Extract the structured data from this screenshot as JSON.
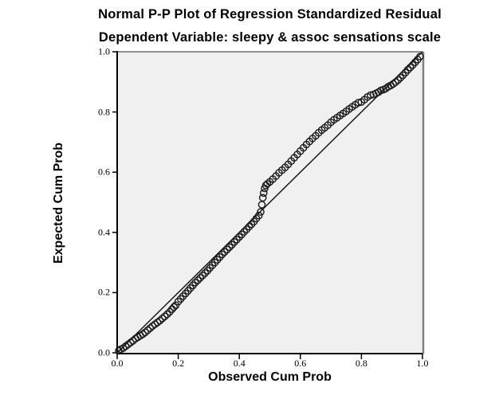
{
  "figure": {
    "title": "Normal P-P Plot of Regression Standardized Residual",
    "subtitle": "Dependent Variable: sleepy & assoc sensations scale"
  },
  "axes": {
    "x_label": "Observed Cum Prob",
    "y_label": "Expected Cum Prob",
    "x_ticks": [
      "0.0",
      "0.2",
      "0.4",
      "0.6",
      "0.8",
      "1.0"
    ],
    "y_ticks": [
      "0.0",
      "0.2",
      "0.4",
      "0.6",
      "0.8",
      "1.0"
    ]
  },
  "colors": {
    "background": "#ffffff",
    "plot_background": "#f0f0f0",
    "axis_line": "#000000",
    "top_border": "#2a2a2a",
    "right_border": "#808080",
    "reference_line": "#1a1a1a",
    "point_stroke": "#1a1a1a"
  },
  "chart_data": {
    "type": "scatter",
    "title": "Normal P-P Plot of Regression Standardized Residual",
    "subtitle": "Dependent Variable: sleepy & assoc sensations scale",
    "xlabel": "Observed Cum Prob",
    "ylabel": "Expected Cum Prob",
    "xlim": [
      0,
      1
    ],
    "ylim": [
      0,
      1
    ],
    "grid": false,
    "legend": "none",
    "marker": "open-circle",
    "reference_line": {
      "from": [
        0,
        0
      ],
      "to": [
        1,
        1
      ]
    },
    "points": [
      [
        0.005,
        0.007
      ],
      [
        0.012,
        0.012
      ],
      [
        0.02,
        0.016
      ],
      [
        0.028,
        0.022
      ],
      [
        0.036,
        0.028
      ],
      [
        0.044,
        0.034
      ],
      [
        0.052,
        0.04
      ],
      [
        0.06,
        0.047
      ],
      [
        0.068,
        0.052
      ],
      [
        0.076,
        0.057
      ],
      [
        0.084,
        0.062
      ],
      [
        0.092,
        0.068
      ],
      [
        0.1,
        0.075
      ],
      [
        0.108,
        0.082
      ],
      [
        0.116,
        0.089
      ],
      [
        0.124,
        0.095
      ],
      [
        0.132,
        0.101
      ],
      [
        0.14,
        0.107
      ],
      [
        0.148,
        0.114
      ],
      [
        0.156,
        0.121
      ],
      [
        0.164,
        0.128
      ],
      [
        0.172,
        0.136
      ],
      [
        0.18,
        0.145
      ],
      [
        0.186,
        0.152
      ],
      [
        0.192,
        0.158
      ],
      [
        0.2,
        0.17
      ],
      [
        0.208,
        0.179
      ],
      [
        0.216,
        0.188
      ],
      [
        0.224,
        0.197
      ],
      [
        0.232,
        0.206
      ],
      [
        0.24,
        0.215
      ],
      [
        0.248,
        0.224
      ],
      [
        0.256,
        0.233
      ],
      [
        0.264,
        0.241
      ],
      [
        0.272,
        0.249
      ],
      [
        0.28,
        0.257
      ],
      [
        0.288,
        0.265
      ],
      [
        0.296,
        0.273
      ],
      [
        0.304,
        0.282
      ],
      [
        0.312,
        0.291
      ],
      [
        0.32,
        0.3
      ],
      [
        0.328,
        0.309
      ],
      [
        0.336,
        0.318
      ],
      [
        0.344,
        0.327
      ],
      [
        0.352,
        0.335
      ],
      [
        0.36,
        0.343
      ],
      [
        0.368,
        0.351
      ],
      [
        0.376,
        0.359
      ],
      [
        0.384,
        0.368
      ],
      [
        0.392,
        0.376
      ],
      [
        0.4,
        0.385
      ],
      [
        0.408,
        0.393
      ],
      [
        0.416,
        0.402
      ],
      [
        0.424,
        0.41
      ],
      [
        0.432,
        0.419
      ],
      [
        0.44,
        0.427
      ],
      [
        0.448,
        0.436
      ],
      [
        0.456,
        0.446
      ],
      [
        0.464,
        0.456
      ],
      [
        0.47,
        0.468
      ],
      [
        0.474,
        0.492
      ],
      [
        0.477,
        0.515
      ],
      [
        0.48,
        0.531
      ],
      [
        0.483,
        0.546
      ],
      [
        0.487,
        0.556
      ],
      [
        0.492,
        0.561
      ],
      [
        0.5,
        0.568
      ],
      [
        0.51,
        0.577
      ],
      [
        0.52,
        0.587
      ],
      [
        0.53,
        0.598
      ],
      [
        0.54,
        0.607
      ],
      [
        0.55,
        0.616
      ],
      [
        0.56,
        0.626
      ],
      [
        0.57,
        0.637
      ],
      [
        0.58,
        0.648
      ],
      [
        0.59,
        0.659
      ],
      [
        0.6,
        0.67
      ],
      [
        0.61,
        0.681
      ],
      [
        0.62,
        0.692
      ],
      [
        0.63,
        0.702
      ],
      [
        0.64,
        0.712
      ],
      [
        0.65,
        0.721
      ],
      [
        0.66,
        0.731
      ],
      [
        0.67,
        0.74
      ],
      [
        0.68,
        0.748
      ],
      [
        0.69,
        0.756
      ],
      [
        0.7,
        0.766
      ],
      [
        0.71,
        0.774
      ],
      [
        0.72,
        0.781
      ],
      [
        0.73,
        0.788
      ],
      [
        0.74,
        0.795
      ],
      [
        0.75,
        0.802
      ],
      [
        0.76,
        0.81
      ],
      [
        0.77,
        0.817
      ],
      [
        0.78,
        0.824
      ],
      [
        0.79,
        0.831
      ],
      [
        0.8,
        0.833
      ],
      [
        0.81,
        0.841
      ],
      [
        0.82,
        0.85
      ],
      [
        0.83,
        0.856
      ],
      [
        0.84,
        0.858
      ],
      [
        0.848,
        0.862
      ],
      [
        0.856,
        0.866
      ],
      [
        0.864,
        0.872
      ],
      [
        0.872,
        0.874
      ],
      [
        0.88,
        0.878
      ],
      [
        0.888,
        0.884
      ],
      [
        0.896,
        0.888
      ],
      [
        0.904,
        0.893
      ],
      [
        0.912,
        0.899
      ],
      [
        0.92,
        0.906
      ],
      [
        0.928,
        0.914
      ],
      [
        0.936,
        0.922
      ],
      [
        0.944,
        0.931
      ],
      [
        0.952,
        0.94
      ],
      [
        0.96,
        0.948
      ],
      [
        0.968,
        0.956
      ],
      [
        0.976,
        0.965
      ],
      [
        0.984,
        0.974
      ],
      [
        0.992,
        0.984
      ]
    ]
  }
}
